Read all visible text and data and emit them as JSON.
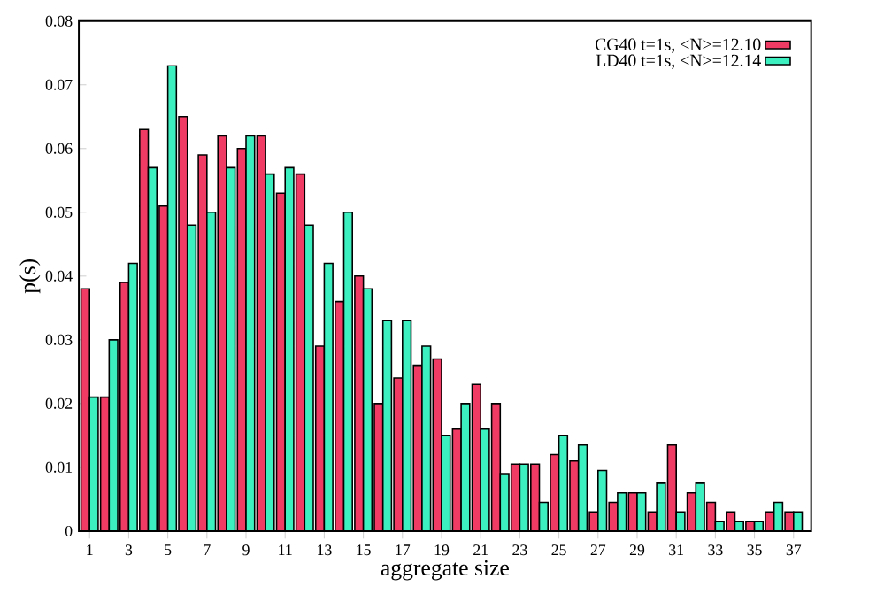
{
  "chart_data": {
    "type": "bar",
    "xlabel": "aggregate size",
    "ylabel": "p(s)",
    "x": [
      1,
      2,
      3,
      4,
      5,
      6,
      7,
      8,
      9,
      10,
      11,
      12,
      13,
      14,
      15,
      16,
      17,
      18,
      19,
      20,
      21,
      22,
      23,
      24,
      25,
      26,
      27,
      28,
      29,
      30,
      31,
      32,
      33,
      34,
      35,
      36,
      37
    ],
    "series": [
      {
        "name": "CG40 t=1s, <N>=12.10",
        "color": "#f03c64",
        "values": [
          0.038,
          0.021,
          0.039,
          0.063,
          0.051,
          0.065,
          0.059,
          0.062,
          0.06,
          0.062,
          0.053,
          0.056,
          0.029,
          0.036,
          0.04,
          0.02,
          0.024,
          0.026,
          0.027,
          0.016,
          0.023,
          0.02,
          0.0105,
          0.0105,
          0.012,
          0.011,
          0.003,
          0.0045,
          0.006,
          0.003,
          0.0135,
          0.006,
          0.0045,
          0.003,
          0.0015,
          0.003,
          0.003
        ]
      },
      {
        "name": "LD40 t=1s, <N>=12.14",
        "color": "#3cf0c0",
        "values": [
          0.021,
          0.03,
          0.042,
          0.057,
          0.073,
          0.048,
          0.05,
          0.057,
          0.062,
          0.056,
          0.057,
          0.048,
          0.042,
          0.05,
          0.038,
          0.033,
          0.033,
          0.029,
          0.015,
          0.02,
          0.016,
          0.009,
          0.0105,
          0.0045,
          0.015,
          0.0135,
          0.0095,
          0.006,
          0.006,
          0.0075,
          0.003,
          0.0075,
          0.0015,
          0.0015,
          0.0015,
          0.0045,
          0.003
        ]
      }
    ],
    "xlim": [
      0.45,
      37.9
    ],
    "ylim": [
      0,
      0.08
    ],
    "xticks": [
      1,
      3,
      5,
      7,
      9,
      11,
      13,
      15,
      17,
      19,
      21,
      23,
      25,
      27,
      29,
      31,
      33,
      35,
      37
    ],
    "yticks": [
      0,
      0.01,
      0.02,
      0.03,
      0.04,
      0.05,
      0.06,
      0.07,
      0.08
    ],
    "legend": "top right"
  }
}
